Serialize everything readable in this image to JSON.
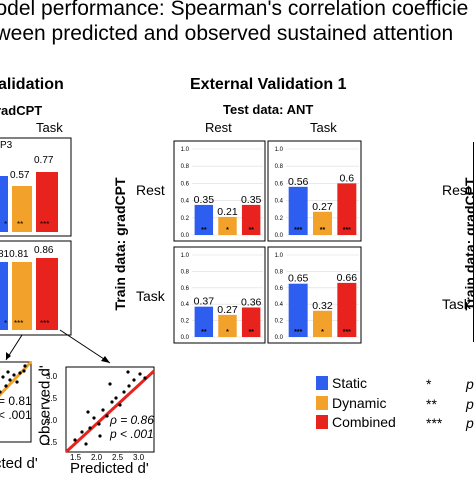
{
  "title": {
    "line1": "Model performance: Spearman's correlation coefficie",
    "line2": "etween predicted and observed sustained attention"
  },
  "left_panel": {
    "heading": "alidation",
    "subheading": "radCPT",
    "col_task": "Task",
    "values": [
      "P3",
      "0.57",
      "0.77",
      "810.81",
      "0.86"
    ]
  },
  "external_validation": {
    "heading": "External Validation 1",
    "subheading": "Test data: ANT",
    "col_labels": [
      "Rest",
      "Task"
    ],
    "row_labels": [
      "Rest",
      "Task"
    ],
    "y_axis_title": "Train data: gradCPT"
  },
  "right_panel": {
    "y_axis_title": "Train data: gradCPT",
    "row_labels": [
      "Rest",
      "Task"
    ]
  },
  "scatter_left": {
    "rho_text": "= 0.81",
    "p_text": "< .001",
    "xlabel": "cted d'",
    "ticks_y": []
  },
  "scatter_right": {
    "ylabel": "Observed d'",
    "xlabel": "Predicted d'",
    "rho_text": "ρ = 0.86",
    "p_text": "p < .001",
    "y_ticks": [
      "3.0",
      "2.5",
      "2.0",
      "1.5"
    ],
    "x_ticks": [
      "1.5",
      "2.0",
      "2.5",
      "3.0"
    ]
  },
  "legend": {
    "items": [
      {
        "label": "Static",
        "color": "#2e5ef0"
      },
      {
        "label": "Dynamic",
        "color": "#f2a22a"
      },
      {
        "label": "Combined",
        "color": "#e8231d"
      }
    ],
    "sig": [
      {
        "symbol": "*",
        "p": "p"
      },
      {
        "symbol": "**",
        "p": "p"
      },
      {
        "symbol": "***",
        "p": "p"
      }
    ]
  },
  "chart_data": {
    "type": "bar",
    "title": "External Validation 1",
    "subtitle": "Test data: ANT",
    "ylabel": "Train data: gradCPT",
    "ylim": [
      0,
      1.0
    ],
    "y_ticks": [
      "0.0",
      "0.2",
      "0.4",
      "0.6",
      "0.8",
      "1.0"
    ],
    "categories": [
      "Static",
      "Dynamic",
      "Combined"
    ],
    "colors": [
      "#2e5ef0",
      "#f2a22a",
      "#e8231d"
    ],
    "panels": [
      {
        "train": "Rest",
        "test": "Rest",
        "values": [
          0.35,
          0.21,
          0.35
        ],
        "labels": [
          "0.35",
          "0.21",
          "0.35"
        ],
        "sig": [
          "**",
          "*",
          "**"
        ]
      },
      {
        "train": "Rest",
        "test": "Task",
        "values": [
          0.56,
          0.27,
          0.6
        ],
        "labels": [
          "0.56",
          "0.27",
          "0.6"
        ],
        "sig": [
          "***",
          "**",
          "***"
        ]
      },
      {
        "train": "Task",
        "test": "Rest",
        "values": [
          0.37,
          0.27,
          0.36
        ],
        "labels": [
          "0.37",
          "0.27",
          "0.36"
        ],
        "sig": [
          "**",
          "*",
          "**"
        ]
      },
      {
        "train": "Task",
        "test": "Task",
        "values": [
          0.65,
          0.32,
          0.66
        ],
        "labels": [
          "0.65",
          "0.32",
          "0.66"
        ],
        "sig": [
          "***",
          "*",
          "***"
        ]
      }
    ]
  }
}
